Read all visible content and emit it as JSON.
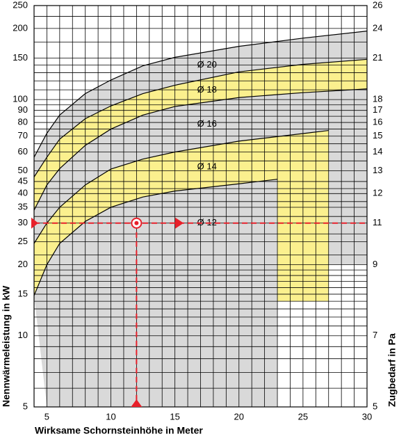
{
  "chart_data": {
    "type": "band-nomogram",
    "x_label": "Wirksame Schornsteinhöhe in Meter",
    "y_label": "Nennwärmeleistung in kW",
    "y2_label": "Zugbedarf in Pa",
    "xlim": [
      4,
      30
    ],
    "xticks": [
      5,
      10,
      15,
      20,
      25,
      30
    ],
    "xminor": [
      4,
      6,
      7,
      8,
      9,
      11,
      12,
      13,
      14,
      16,
      17,
      18,
      19,
      21,
      22,
      23,
      24,
      26,
      27,
      28,
      29
    ],
    "ylim": [
      5,
      250
    ],
    "log_y": true,
    "yticks": [
      250,
      200,
      150,
      100,
      90,
      80,
      70,
      60,
      50,
      45,
      40,
      35,
      30,
      25,
      20,
      15,
      10,
      5
    ],
    "yminor": [
      6,
      7,
      8,
      9,
      11,
      12,
      13,
      14,
      16,
      17,
      18,
      19,
      22,
      27,
      32,
      37,
      42,
      55,
      65,
      75,
      85,
      95,
      110,
      120,
      130,
      140,
      175,
      225
    ],
    "y2_mapping": [
      {
        "kw": 250,
        "pa": 26
      },
      {
        "kw": 200,
        "pa": 24
      },
      {
        "kw": 150,
        "pa": 21
      },
      {
        "kw": 100,
        "pa": 18
      },
      {
        "kw": 90,
        "pa": 17
      },
      {
        "kw": 80,
        "pa": 16
      },
      {
        "kw": 70,
        "pa": 15
      },
      {
        "kw": 60,
        "pa": 14
      },
      {
        "kw": 50,
        "pa": 13
      },
      {
        "kw": 40,
        "pa": 12
      },
      {
        "kw": 30,
        "pa": 11
      },
      {
        "kw": 20,
        "pa": 9
      },
      {
        "kw": 10,
        "pa": 7
      },
      {
        "kw": 5,
        "pa": 5
      }
    ],
    "series": [
      {
        "name": "Ø 12",
        "color": "#d9d9d9",
        "x": [
          4,
          5,
          6,
          8,
          10,
          12.5,
          15,
          20,
          23
        ],
        "values": [
          14.8,
          20,
          24.6,
          30.5,
          35,
          38.7,
          41,
          44,
          46
        ],
        "floor": 5,
        "floor_start": 5
      },
      {
        "name": "Ø 14",
        "color": "#fbf08e",
        "x": [
          4,
          5,
          6,
          8,
          10,
          12.5,
          15,
          20,
          25,
          27
        ],
        "values": [
          24.6,
          30,
          35,
          43.5,
          50.8,
          56,
          60,
          66.7,
          71.8,
          74
        ],
        "floor": 14
      },
      {
        "name": "Ø 16",
        "color": "#d9d9d9",
        "x": [
          4,
          5,
          6,
          8,
          10,
          12.5,
          15,
          20,
          25,
          30
        ],
        "values": [
          34,
          43.5,
          51,
          64,
          75,
          86,
          93.5,
          102,
          107,
          111
        ],
        "floor": 20
      },
      {
        "name": "Ø 18",
        "color": "#fbf08e",
        "x": [
          4,
          5,
          6,
          8,
          10,
          12.5,
          15,
          20,
          25,
          30
        ],
        "values": [
          47,
          57,
          68,
          83,
          94,
          106,
          115,
          131,
          141,
          148
        ]
      },
      {
        "name": "Ø 20",
        "color": "#d9d9d9",
        "x": [
          4,
          5,
          6,
          8,
          10,
          12.5,
          15,
          20,
          25,
          30
        ],
        "values": [
          57,
          72,
          86,
          106,
          121,
          139,
          151,
          168,
          182,
          195
        ]
      }
    ],
    "example": {
      "x": 12,
      "kw": 30,
      "color": "#e8202a"
    }
  }
}
